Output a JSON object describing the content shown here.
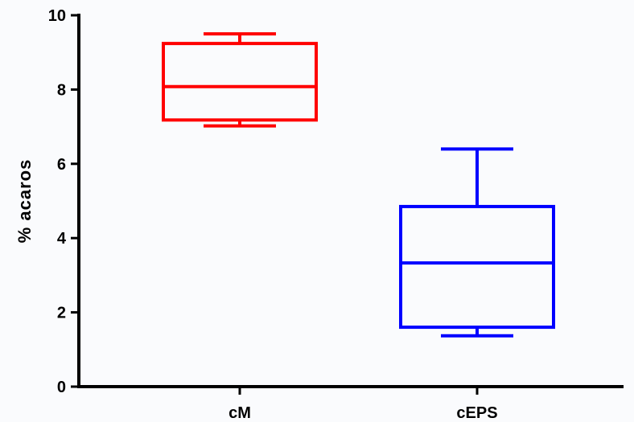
{
  "chart_data": {
    "type": "box",
    "title": "",
    "xlabel": "",
    "ylabel": "% acaros",
    "ylim": [
      0,
      10
    ],
    "yticks": [
      0,
      2,
      4,
      6,
      8,
      10
    ],
    "ytick_labels": [
      "0",
      "2",
      "4",
      "6",
      "8",
      "10"
    ],
    "grid": false,
    "legend": "none",
    "categories": [
      "cM",
      "cEPS"
    ],
    "series": [
      {
        "category": "cM",
        "color": "#ff0000",
        "min": 7.02,
        "q1": 7.18,
        "median": 8.08,
        "q3": 9.24,
        "max": 9.5
      },
      {
        "category": "cEPS",
        "color": "#0000ff",
        "min": 1.37,
        "q1": 1.6,
        "median": 3.33,
        "q3": 4.85,
        "max": 6.4
      }
    ]
  }
}
